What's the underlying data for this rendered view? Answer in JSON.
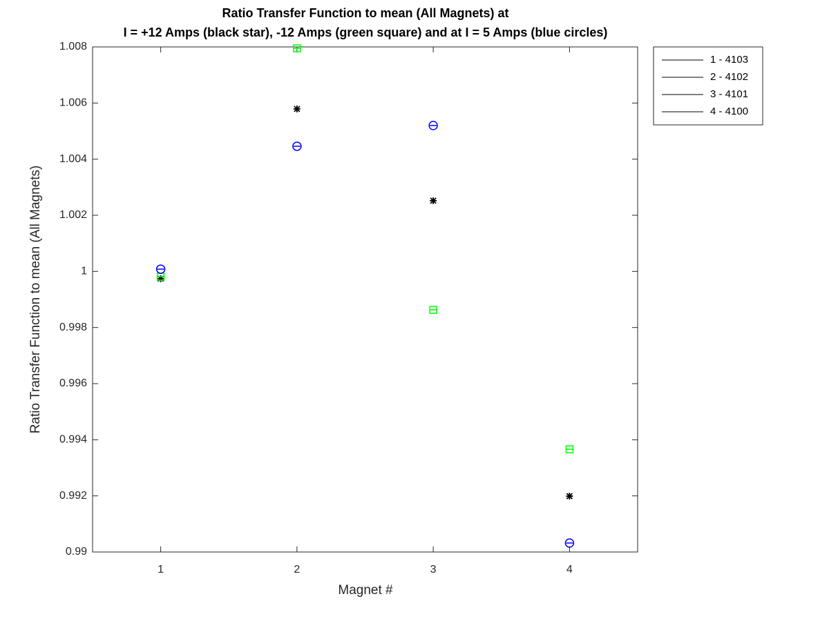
{
  "chart_data": {
    "type": "scatter",
    "title": [
      "Ratio Transfer Function to mean (All Magnets) at",
      "I = +12 Amps (black star), -12 Amps (green square) and at I = 5 Amps (blue circles)"
    ],
    "x_label": "Magnet #",
    "y_label": "Ratio Transfer Function to mean (All Magnets)",
    "x": [
      1,
      2,
      3,
      4
    ],
    "series": [
      {
        "marker": "star",
        "color": "#000000",
        "values": [
          0.99974,
          1.00579,
          1.00252,
          0.99199
        ]
      },
      {
        "marker": "square",
        "color": "#00ff00",
        "values": [
          0.99981,
          1.00795,
          0.99863,
          0.99366
        ]
      },
      {
        "marker": "circle",
        "color": "#0000ff",
        "values": [
          1.00008,
          1.00446,
          1.0052,
          0.99032
        ]
      }
    ],
    "xlim": [
      0.5,
      4.5
    ],
    "xticks": [
      1,
      2,
      3,
      4
    ],
    "ylim": [
      0.99,
      1.008
    ],
    "yticks": [
      0.99,
      0.992,
      0.994,
      0.996,
      0.998,
      1,
      1.002,
      1.004,
      1.006,
      1.008
    ],
    "grid": false,
    "legend": {
      "position": "outside-right",
      "color": "#000000",
      "entries": [
        "1 - 4103",
        "2 - 4102",
        "3 - 4101",
        "4 - 4100"
      ]
    }
  }
}
